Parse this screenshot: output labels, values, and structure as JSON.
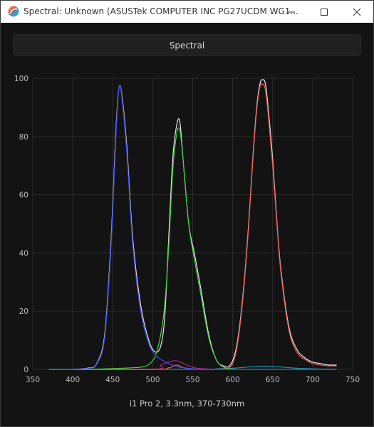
{
  "window": {
    "title": "Spectral: Unknown (ASUSTek COMPUTER INC PG27UCDM WG1...",
    "controls": [
      "minimize",
      "maximize",
      "close"
    ]
  },
  "toolbar": {
    "spectral_label": "Spectral"
  },
  "caption": "i1 Pro 2, 3.3nm, 370-730nm",
  "colors": {
    "background": "#131313",
    "grid": "#2b2b2b",
    "blue": "#3a4cf0",
    "green": "#3fd23a",
    "red": "#f05a55",
    "white": "#e8e8e8",
    "teal": "#1a9a9a",
    "magenta": "#b0208a"
  },
  "chart_data": {
    "type": "line",
    "xlim": [
      350,
      750
    ],
    "ylim": [
      0,
      100
    ],
    "xticks": [
      350,
      400,
      450,
      500,
      550,
      600,
      650,
      700,
      750
    ],
    "yticks": [
      0,
      20,
      40,
      60,
      80,
      100
    ],
    "grid": true,
    "series": [
      {
        "color": "#e8e8e8",
        "x": [
          370,
          400,
          420,
          430,
          440,
          448,
          454,
          458,
          462,
          468,
          475,
          485,
          495,
          503,
          510,
          515,
          520,
          525,
          530,
          534,
          538,
          545,
          552,
          560,
          570,
          580,
          590,
          595,
          600,
          605,
          610,
          615,
          620,
          625,
          630,
          634,
          637,
          641,
          645,
          650,
          655,
          660,
          670,
          680,
          690,
          700,
          710,
          720,
          730
        ],
        "y": [
          0,
          0,
          0.5,
          2,
          12,
          45,
          82,
          97,
          93,
          75,
          45,
          22,
          10,
          6,
          8,
          18,
          45,
          72,
          84,
          85,
          72,
          50,
          40,
          28,
          12,
          3,
          1,
          1,
          3,
          8,
          18,
          32,
          50,
          72,
          90,
          98,
          99.5,
          98,
          88,
          72,
          52,
          35,
          15,
          7,
          4,
          2.5,
          2,
          1.5,
          1.5
        ]
      },
      {
        "color": "#3a4cf0",
        "x": [
          370,
          400,
          420,
          430,
          440,
          448,
          454,
          458,
          462,
          468,
          475,
          485,
          495,
          503,
          510,
          520,
          530,
          540,
          550,
          560,
          580,
          600,
          650,
          700,
          730
        ],
        "y": [
          0,
          0,
          0.4,
          1.8,
          11,
          43,
          80,
          97,
          92,
          73,
          43,
          20,
          9,
          5,
          3.5,
          2,
          1,
          0.5,
          0.2,
          0,
          0,
          0,
          0,
          0,
          0
        ]
      },
      {
        "color": "#3fd23a",
        "x": [
          370,
          420,
          450,
          470,
          490,
          500,
          505,
          510,
          515,
          520,
          525,
          530,
          534,
          538,
          545,
          552,
          560,
          570,
          580,
          590,
          595,
          600,
          610,
          650,
          700,
          730
        ],
        "y": [
          0,
          0,
          0.3,
          0.5,
          1,
          3,
          6,
          12,
          22,
          42,
          68,
          81,
          82,
          72,
          50,
          38,
          26,
          11,
          3,
          0.6,
          0.3,
          0.1,
          0,
          0,
          0,
          0
        ]
      },
      {
        "color": "#f05a55",
        "x": [
          370,
          500,
          520,
          530,
          540,
          560,
          580,
          590,
          595,
          600,
          605,
          610,
          615,
          620,
          625,
          630,
          634,
          637,
          641,
          645,
          650,
          655,
          660,
          670,
          680,
          690,
          700,
          710,
          720,
          730
        ],
        "y": [
          0,
          0,
          0.5,
          1.5,
          0.5,
          0,
          0,
          0.2,
          0.5,
          2,
          7,
          17,
          31,
          49,
          71,
          89,
          97,
          98,
          96,
          86,
          70,
          51,
          34,
          14,
          6,
          3.5,
          2,
          1.5,
          1.2,
          1.2
        ]
      },
      {
        "color": "#b0208a",
        "x": [
          370,
          500,
          510,
          520,
          528,
          535,
          545,
          560,
          600,
          730
        ],
        "y": [
          0,
          0,
          1.5,
          2.5,
          3,
          2.5,
          1.2,
          0.3,
          0,
          0
        ]
      },
      {
        "color": "#1a9a9a",
        "x": [
          370,
          560,
          580,
          600,
          620,
          640,
          660,
          680,
          700,
          730
        ],
        "y": [
          0,
          0,
          0.2,
          0.4,
          0.8,
          1.1,
          0.8,
          0.4,
          0.2,
          0
        ]
      }
    ]
  }
}
